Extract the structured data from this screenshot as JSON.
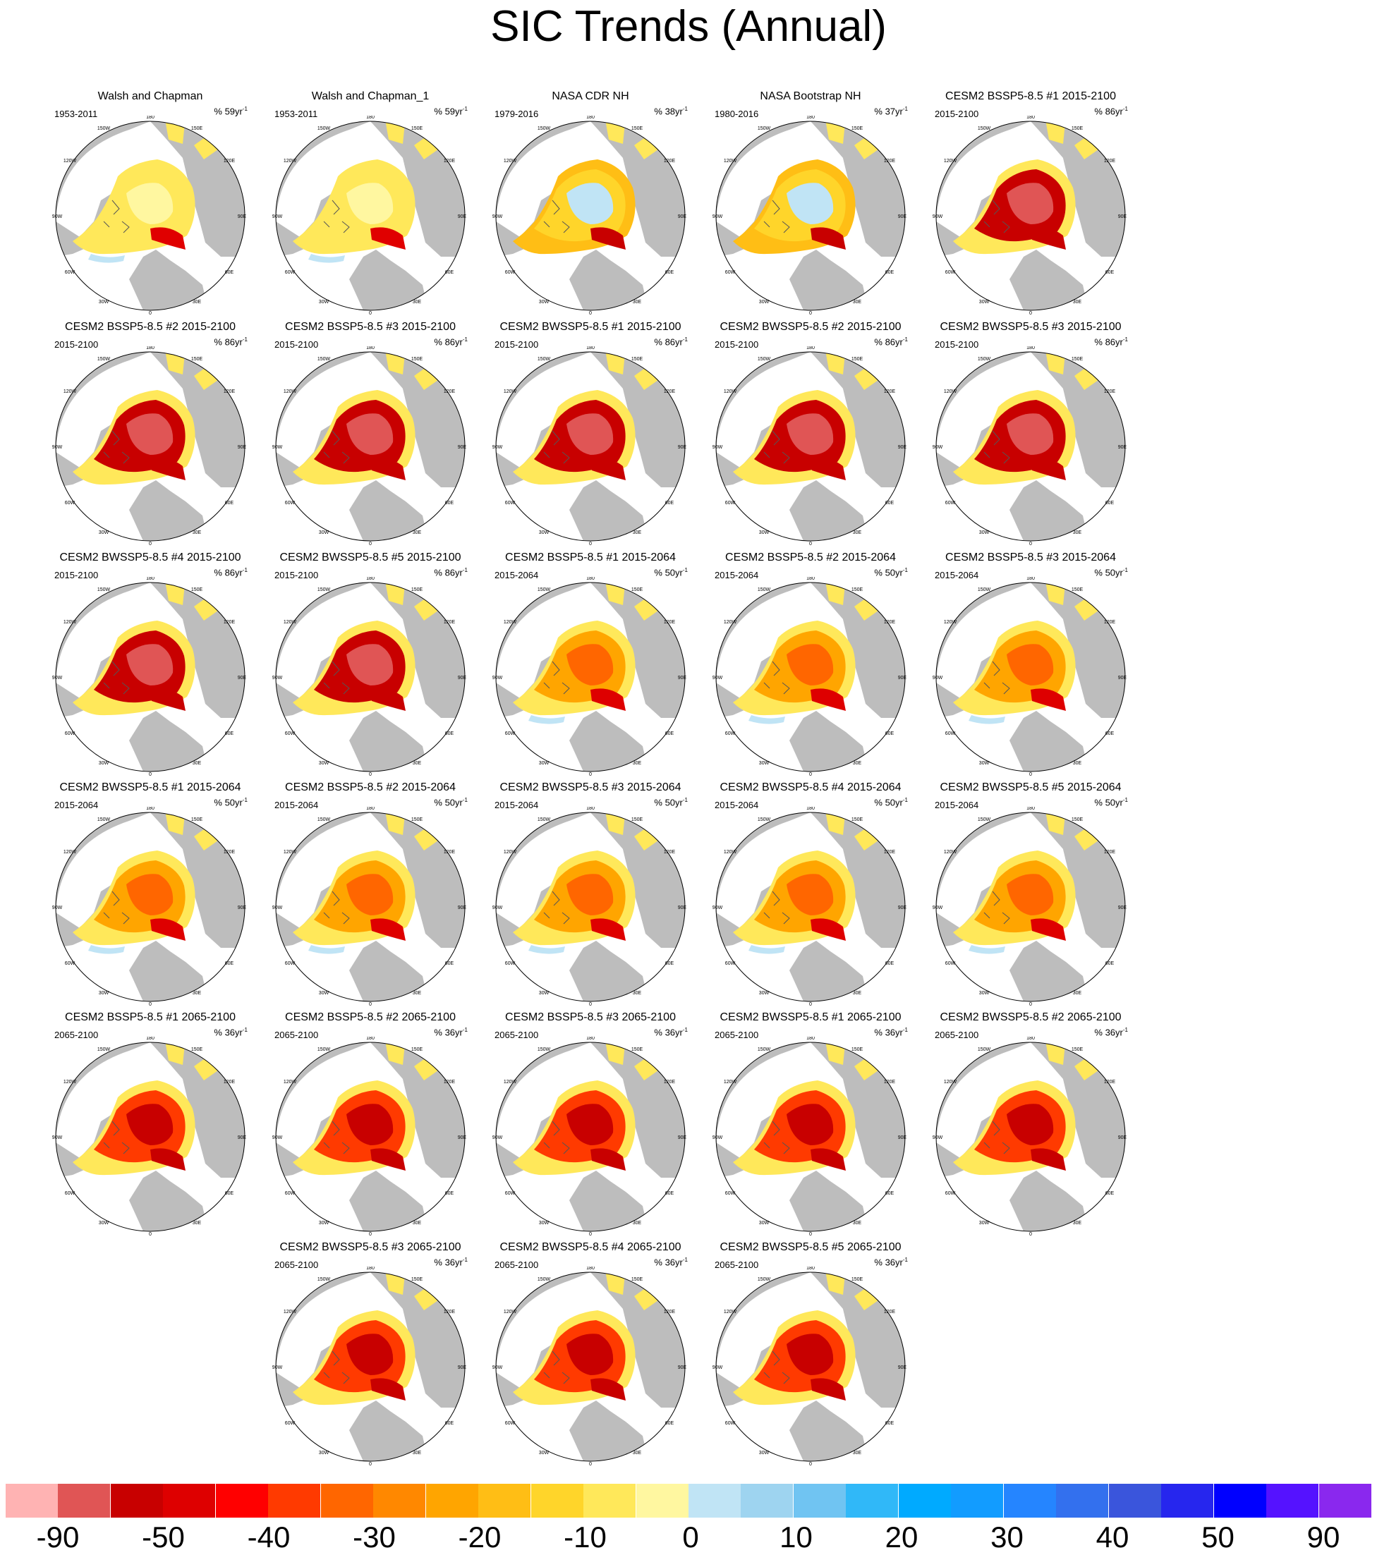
{
  "title": "SIC Trends (Annual)",
  "lon_labels": [
    "180",
    "150E",
    "120E",
    "90E",
    "60E",
    "30E",
    "0",
    "30W",
    "60W",
    "90W",
    "120W",
    "150W"
  ],
  "panels": [
    {
      "title": "Walsh and Chapman",
      "period": "1953-2011",
      "pct": "% 59yr",
      "style": "obs1"
    },
    {
      "title": "Walsh and Chapman_1",
      "period": "1953-2011",
      "pct": "% 59yr",
      "style": "obs1"
    },
    {
      "title": "NASA CDR NH",
      "period": "1979-2016",
      "pct": "% 38yr",
      "style": "obs2"
    },
    {
      "title": "NASA Bootstrap NH",
      "period": "1980-2016",
      "pct": "% 37yr",
      "style": "obs2"
    },
    {
      "title": "CESM2 BSSP5-8.5 #1 2015-2100",
      "period": "2015-2100",
      "pct": "% 86yr",
      "style": "full"
    },
    {
      "title": "CESM2 BSSP5-8.5 #2 2015-2100",
      "period": "2015-2100",
      "pct": "% 86yr",
      "style": "full"
    },
    {
      "title": "CESM2 BSSP5-8.5 #3 2015-2100",
      "period": "2015-2100",
      "pct": "% 86yr",
      "style": "full"
    },
    {
      "title": "CESM2 BWSSP5-8.5 #1 2015-2100",
      "period": "2015-2100",
      "pct": "% 86yr",
      "style": "full"
    },
    {
      "title": "CESM2 BWSSP5-8.5 #2 2015-2100",
      "period": "2015-2100",
      "pct": "% 86yr",
      "style": "full"
    },
    {
      "title": "CESM2 BWSSP5-8.5 #3 2015-2100",
      "period": "2015-2100",
      "pct": "% 86yr",
      "style": "full"
    },
    {
      "title": "CESM2 BWSSP5-8.5 #4 2015-2100",
      "period": "2015-2100",
      "pct": "% 86yr",
      "style": "full"
    },
    {
      "title": "CESM2 BWSSP5-8.5 #5 2015-2100",
      "period": "2015-2100",
      "pct": "% 86yr",
      "style": "full"
    },
    {
      "title": "CESM2 BSSP5-8.5 #1 2015-2064",
      "period": "2015-2064",
      "pct": "% 50yr",
      "style": "early"
    },
    {
      "title": "CESM2 BSSP5-8.5 #2 2015-2064",
      "period": "2015-2064",
      "pct": "% 50yr",
      "style": "early"
    },
    {
      "title": "CESM2 BSSP5-8.5 #3 2015-2064",
      "period": "2015-2064",
      "pct": "% 50yr",
      "style": "early"
    },
    {
      "title": "CESM2 BWSSP5-8.5 #1 2015-2064",
      "period": "2015-2064",
      "pct": "% 50yr",
      "style": "early"
    },
    {
      "title": "CESM2 BSSP5-8.5 #2 2015-2064",
      "period": "2015-2064",
      "pct": "% 50yr",
      "style": "early"
    },
    {
      "title": "CESM2 BWSSP5-8.5 #3 2015-2064",
      "period": "2015-2064",
      "pct": "% 50yr",
      "style": "early"
    },
    {
      "title": "CESM2 BWSSP5-8.5 #4 2015-2064",
      "period": "2015-2064",
      "pct": "% 50yr",
      "style": "early"
    },
    {
      "title": "CESM2 BWSSP5-8.5 #5 2015-2064",
      "period": "2015-2064",
      "pct": "% 50yr",
      "style": "early"
    },
    {
      "title": "CESM2 BSSP5-8.5 #1 2065-2100",
      "period": "2065-2100",
      "pct": "% 36yr",
      "style": "late"
    },
    {
      "title": "CESM2 BSSP5-8.5 #2 2065-2100",
      "period": "2065-2100",
      "pct": "% 36yr",
      "style": "late"
    },
    {
      "title": "CESM2 BSSP5-8.5 #3 2065-2100",
      "period": "2065-2100",
      "pct": "% 36yr",
      "style": "late"
    },
    {
      "title": "CESM2 BWSSP5-8.5 #1 2065-2100",
      "period": "2065-2100",
      "pct": "% 36yr",
      "style": "late"
    },
    {
      "title": "CESM2 BWSSP5-8.5 #2 2065-2100",
      "period": "2065-2100",
      "pct": "% 36yr",
      "style": "late"
    },
    {
      "title": "CESM2 BWSSP5-8.5 #3 2065-2100",
      "period": "2065-2100",
      "pct": "% 36yr",
      "style": "late"
    },
    {
      "title": "CESM2 BWSSP5-8.5 #4 2065-2100",
      "period": "2065-2100",
      "pct": "% 36yr",
      "style": "late"
    },
    {
      "title": "CESM2 BWSSP5-8.5 #5 2065-2100",
      "period": "2065-2100",
      "pct": "% 36yr",
      "style": "late"
    }
  ],
  "pct_exponent": "-1",
  "colorbar": {
    "colors": [
      "#ffb3b3",
      "#e05555",
      "#c80000",
      "#de0000",
      "#ff0000",
      "#ff3a00",
      "#ff6600",
      "#ff8800",
      "#ffa500",
      "#ffbe15",
      "#ffd52a",
      "#ffe85a",
      "#fff7a0",
      "#c0e4f5",
      "#9ed4f0",
      "#70c4f2",
      "#30b8f8",
      "#00aaff",
      "#129cff",
      "#2585ff",
      "#3370ee",
      "#3a55dc",
      "#2626ee",
      "#0000ff",
      "#5512ff",
      "#8a28ee"
    ],
    "labels": [
      "-90",
      "-50",
      "-40",
      "-30",
      "-20",
      "-10",
      "0",
      "10",
      "20",
      "30",
      "40",
      "50",
      "90"
    ]
  },
  "fill_colors": {
    "land": "#bdbdbd",
    "ocean": "#ffffff",
    "outline": "#555555"
  }
}
